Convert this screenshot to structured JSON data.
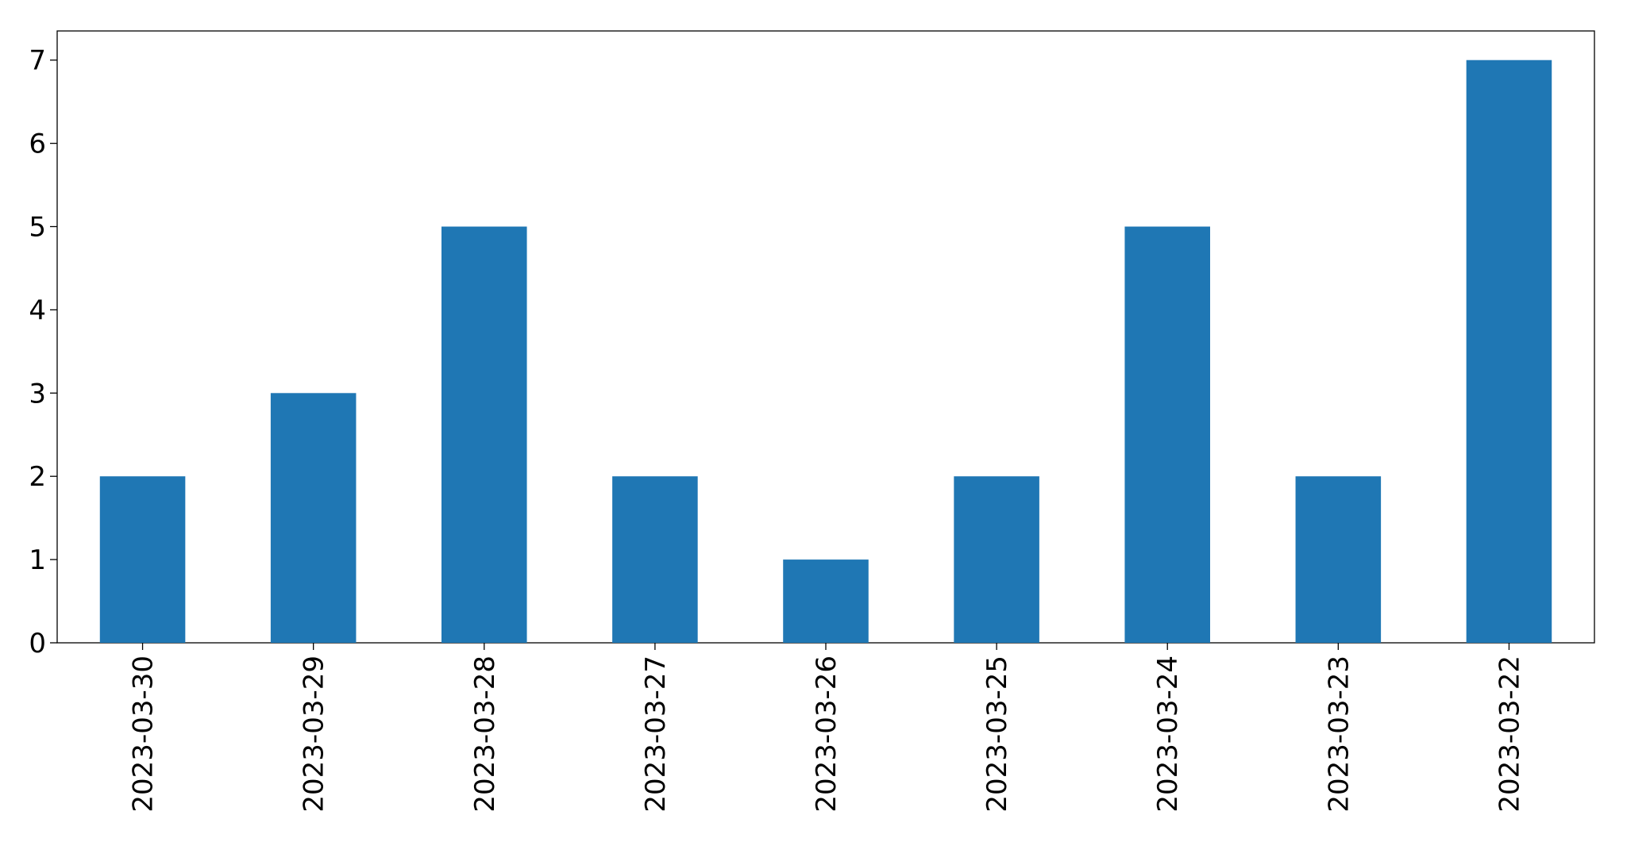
{
  "chart_data": {
    "type": "bar",
    "categories": [
      "2023-03-30",
      "2023-03-29",
      "2023-03-28",
      "2023-03-27",
      "2023-03-26",
      "2023-03-25",
      "2023-03-24",
      "2023-03-23",
      "2023-03-22"
    ],
    "values": [
      2,
      3,
      5,
      2,
      1,
      2,
      5,
      2,
      7
    ],
    "color": "#1f77b4",
    "ylim": [
      0,
      7.35
    ],
    "yticks": [
      0,
      1,
      2,
      3,
      4,
      5,
      6,
      7
    ],
    "grid": false
  }
}
